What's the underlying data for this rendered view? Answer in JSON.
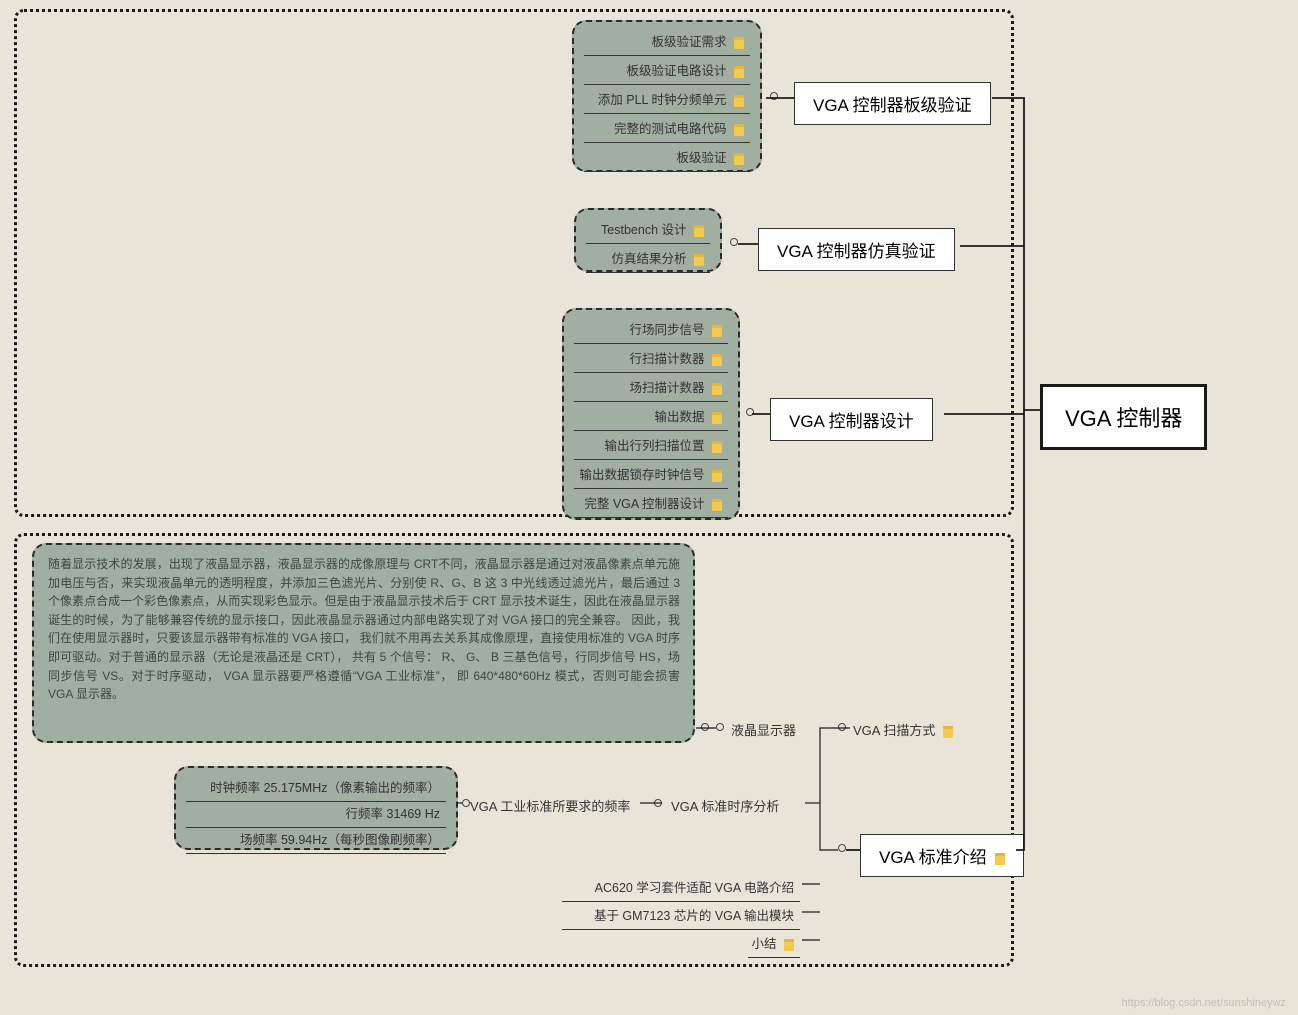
{
  "diagram": {
    "type": "mindmap-rtl",
    "background_color": "#e8e5d8",
    "group_fill": "#a0afa0",
    "group_border": "#2a2a2a",
    "node_border": "#1a1a1a",
    "text_color": "#333333",
    "icon_color": "#f5c94b",
    "line_color": "#1a1a1a",
    "title_fontsize": 22,
    "branch_fontsize": 17,
    "item_fontsize": 12.5,
    "paragraph_fontsize": 12
  },
  "root": {
    "label": "VGA 控制器"
  },
  "branches": {
    "board": {
      "label": "VGA 控制器板级验证",
      "items": [
        "板级验证需求",
        "板级验证电路设计",
        "添加 PLL 时钟分频单元",
        "完整的测试电路代码",
        "板级验证"
      ]
    },
    "sim": {
      "label": "VGA 控制器仿真验证",
      "items": [
        "Testbench 设计",
        "仿真结果分析"
      ]
    },
    "design": {
      "label": "VGA 控制器设计",
      "items": [
        "行场同步信号",
        "行扫描计数器",
        "场扫描计数器",
        "输出数据",
        "输出行列扫描位置",
        "输出数据锁存时钟信号",
        "完整 VGA 控制器设计"
      ]
    },
    "intro": {
      "label": "VGA 标准介绍",
      "has_icon": true,
      "children": {
        "scan": {
          "label": "VGA 扫描方式",
          "has_icon": true
        },
        "lcd": {
          "label": "液晶显示器"
        },
        "timing": {
          "label": "VGA 标准时序分析"
        },
        "freq": {
          "label": "VGA 工业标准所要求的频率",
          "items": [
            "时钟频率 25.175MHz（像素输出的频率）",
            "行频率 31469 Hz",
            "场频率 59.94Hz（每秒图像刷频率）"
          ]
        },
        "ac620": {
          "label": "AC620 学习套件适配 VGA 电路介绍"
        },
        "gm7123": {
          "label": "基于 GM7123 芯片的 VGA 输出模块"
        },
        "summary": {
          "label": "小结"
        }
      },
      "paragraph": "随着显示技术的发展，出现了液晶显示器，液晶显示器的成像原理与 CRT不同，液晶显示器是通过对液晶像素点单元施加电压与否，来实现液晶单元的透明程度，并添加三色滤光片、分别使 R、G、B 这 3 中光线透过滤光片，最后通过 3 个像素点合成一个彩色像素点，从而实现彩色显示。但是由于液晶显示技术后于 CRT 显示技术诞生，因此在液晶显示器诞生的时候，为了能够兼容传统的显示接口，因此液晶显示器通过内部电路实现了对 VGA 接口的完全兼容。 因此，我们在使用显示器时，只要该显示器带有标准的 VGA 接口， 我们就不用再去关系其成像原理，直接使用标准的 VGA 时序即可驱动。对于普通的显示器（无论是液晶还是 CRT）， 共有 5 个信号： R、 G、 B 三基色信号，行同步信号 HS，场同步信号 VS。对于时序驱动， VGA 显示器要严格遵循“VGA 工业标准”， 即 640*480*60Hz 模式，否则可能会损害 VGA 显示器。"
    }
  },
  "watermark": "https://blog.csdn.net/sunshineywz"
}
